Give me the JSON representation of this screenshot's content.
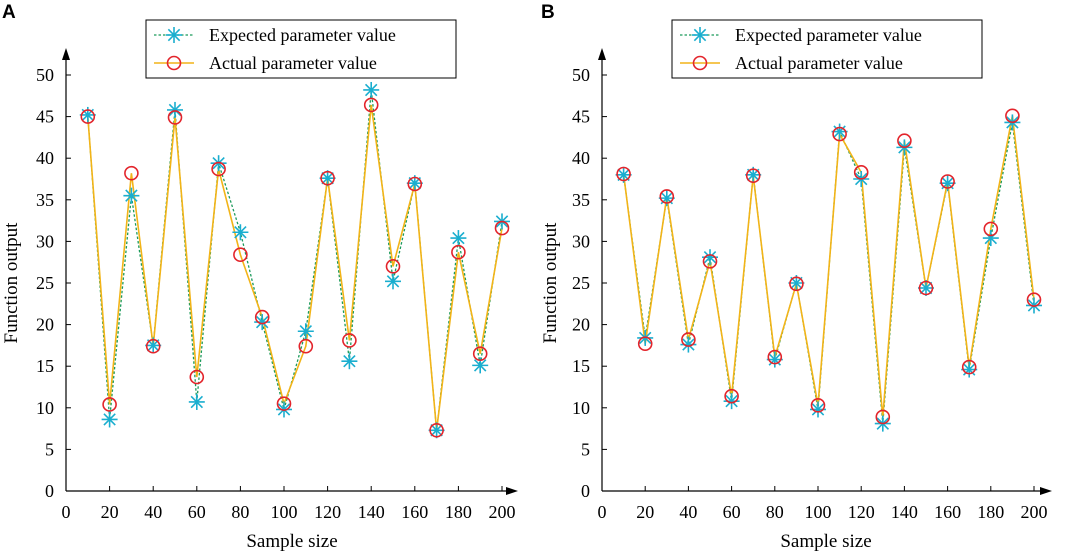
{
  "colors": {
    "expected": "#1aaecf",
    "actual_line": "#f2b418",
    "actual_marker": "#e3242b",
    "axis": "#000000"
  },
  "chart_data": [
    {
      "panel": "A",
      "type": "line",
      "xlabel": "Sample size",
      "ylabel": "Function output",
      "xlim": [
        0,
        200
      ],
      "ylim": [
        0,
        50
      ],
      "xticks": [
        "0",
        "20",
        "40",
        "60",
        "80",
        "100",
        "120",
        "140",
        "160",
        "180",
        "200"
      ],
      "yticks": [
        "0",
        "5",
        "10",
        "15",
        "20",
        "25",
        "30",
        "35",
        "40",
        "45",
        "50"
      ],
      "legend": [
        "Expected parameter value",
        "Actual parameter value"
      ],
      "x": [
        10,
        20,
        30,
        40,
        50,
        60,
        70,
        80,
        90,
        100,
        110,
        120,
        130,
        140,
        150,
        160,
        170,
        180,
        190,
        200
      ],
      "series": [
        {
          "name": "Expected parameter value",
          "values": [
            45.2,
            8.6,
            35.5,
            17.5,
            45.8,
            10.7,
            39.4,
            31.1,
            20.3,
            9.8,
            19.2,
            37.6,
            15.6,
            48.2,
            25.2,
            37.0,
            7.3,
            30.4,
            15.1,
            32.4
          ]
        },
        {
          "name": "Actual parameter value",
          "values": [
            45.0,
            10.4,
            38.2,
            17.4,
            44.9,
            13.7,
            38.7,
            28.4,
            20.9,
            10.5,
            17.4,
            37.6,
            18.1,
            46.4,
            27.0,
            36.9,
            7.3,
            28.7,
            16.5,
            31.6
          ]
        }
      ]
    },
    {
      "panel": "B",
      "type": "line",
      "xlabel": "Sample size",
      "ylabel": "Function output",
      "xlim": [
        0,
        200
      ],
      "ylim": [
        0,
        50
      ],
      "xticks": [
        "0",
        "20",
        "40",
        "60",
        "80",
        "100",
        "120",
        "140",
        "160",
        "180",
        "200"
      ],
      "yticks": [
        "0",
        "5",
        "10",
        "15",
        "20",
        "25",
        "30",
        "35",
        "40",
        "45",
        "50"
      ],
      "legend": [
        "Expected parameter value",
        "Actual parameter value"
      ],
      "x": [
        10,
        20,
        30,
        40,
        50,
        60,
        70,
        80,
        90,
        100,
        110,
        120,
        130,
        140,
        150,
        160,
        170,
        180,
        190,
        200
      ],
      "series": [
        {
          "name": "Expected parameter value",
          "values": [
            38.0,
            18.4,
            35.2,
            17.6,
            28.1,
            10.8,
            38.0,
            15.8,
            25.0,
            9.8,
            43.2,
            37.5,
            8.1,
            41.3,
            24.4,
            37.0,
            14.6,
            30.4,
            44.3,
            22.3
          ]
        },
        {
          "name": "Actual parameter value",
          "values": [
            38.1,
            17.7,
            35.4,
            18.2,
            27.6,
            11.4,
            37.9,
            16.1,
            24.9,
            10.3,
            42.9,
            38.3,
            8.9,
            42.1,
            24.4,
            37.2,
            14.9,
            31.5,
            45.1,
            23.0
          ]
        }
      ]
    }
  ]
}
